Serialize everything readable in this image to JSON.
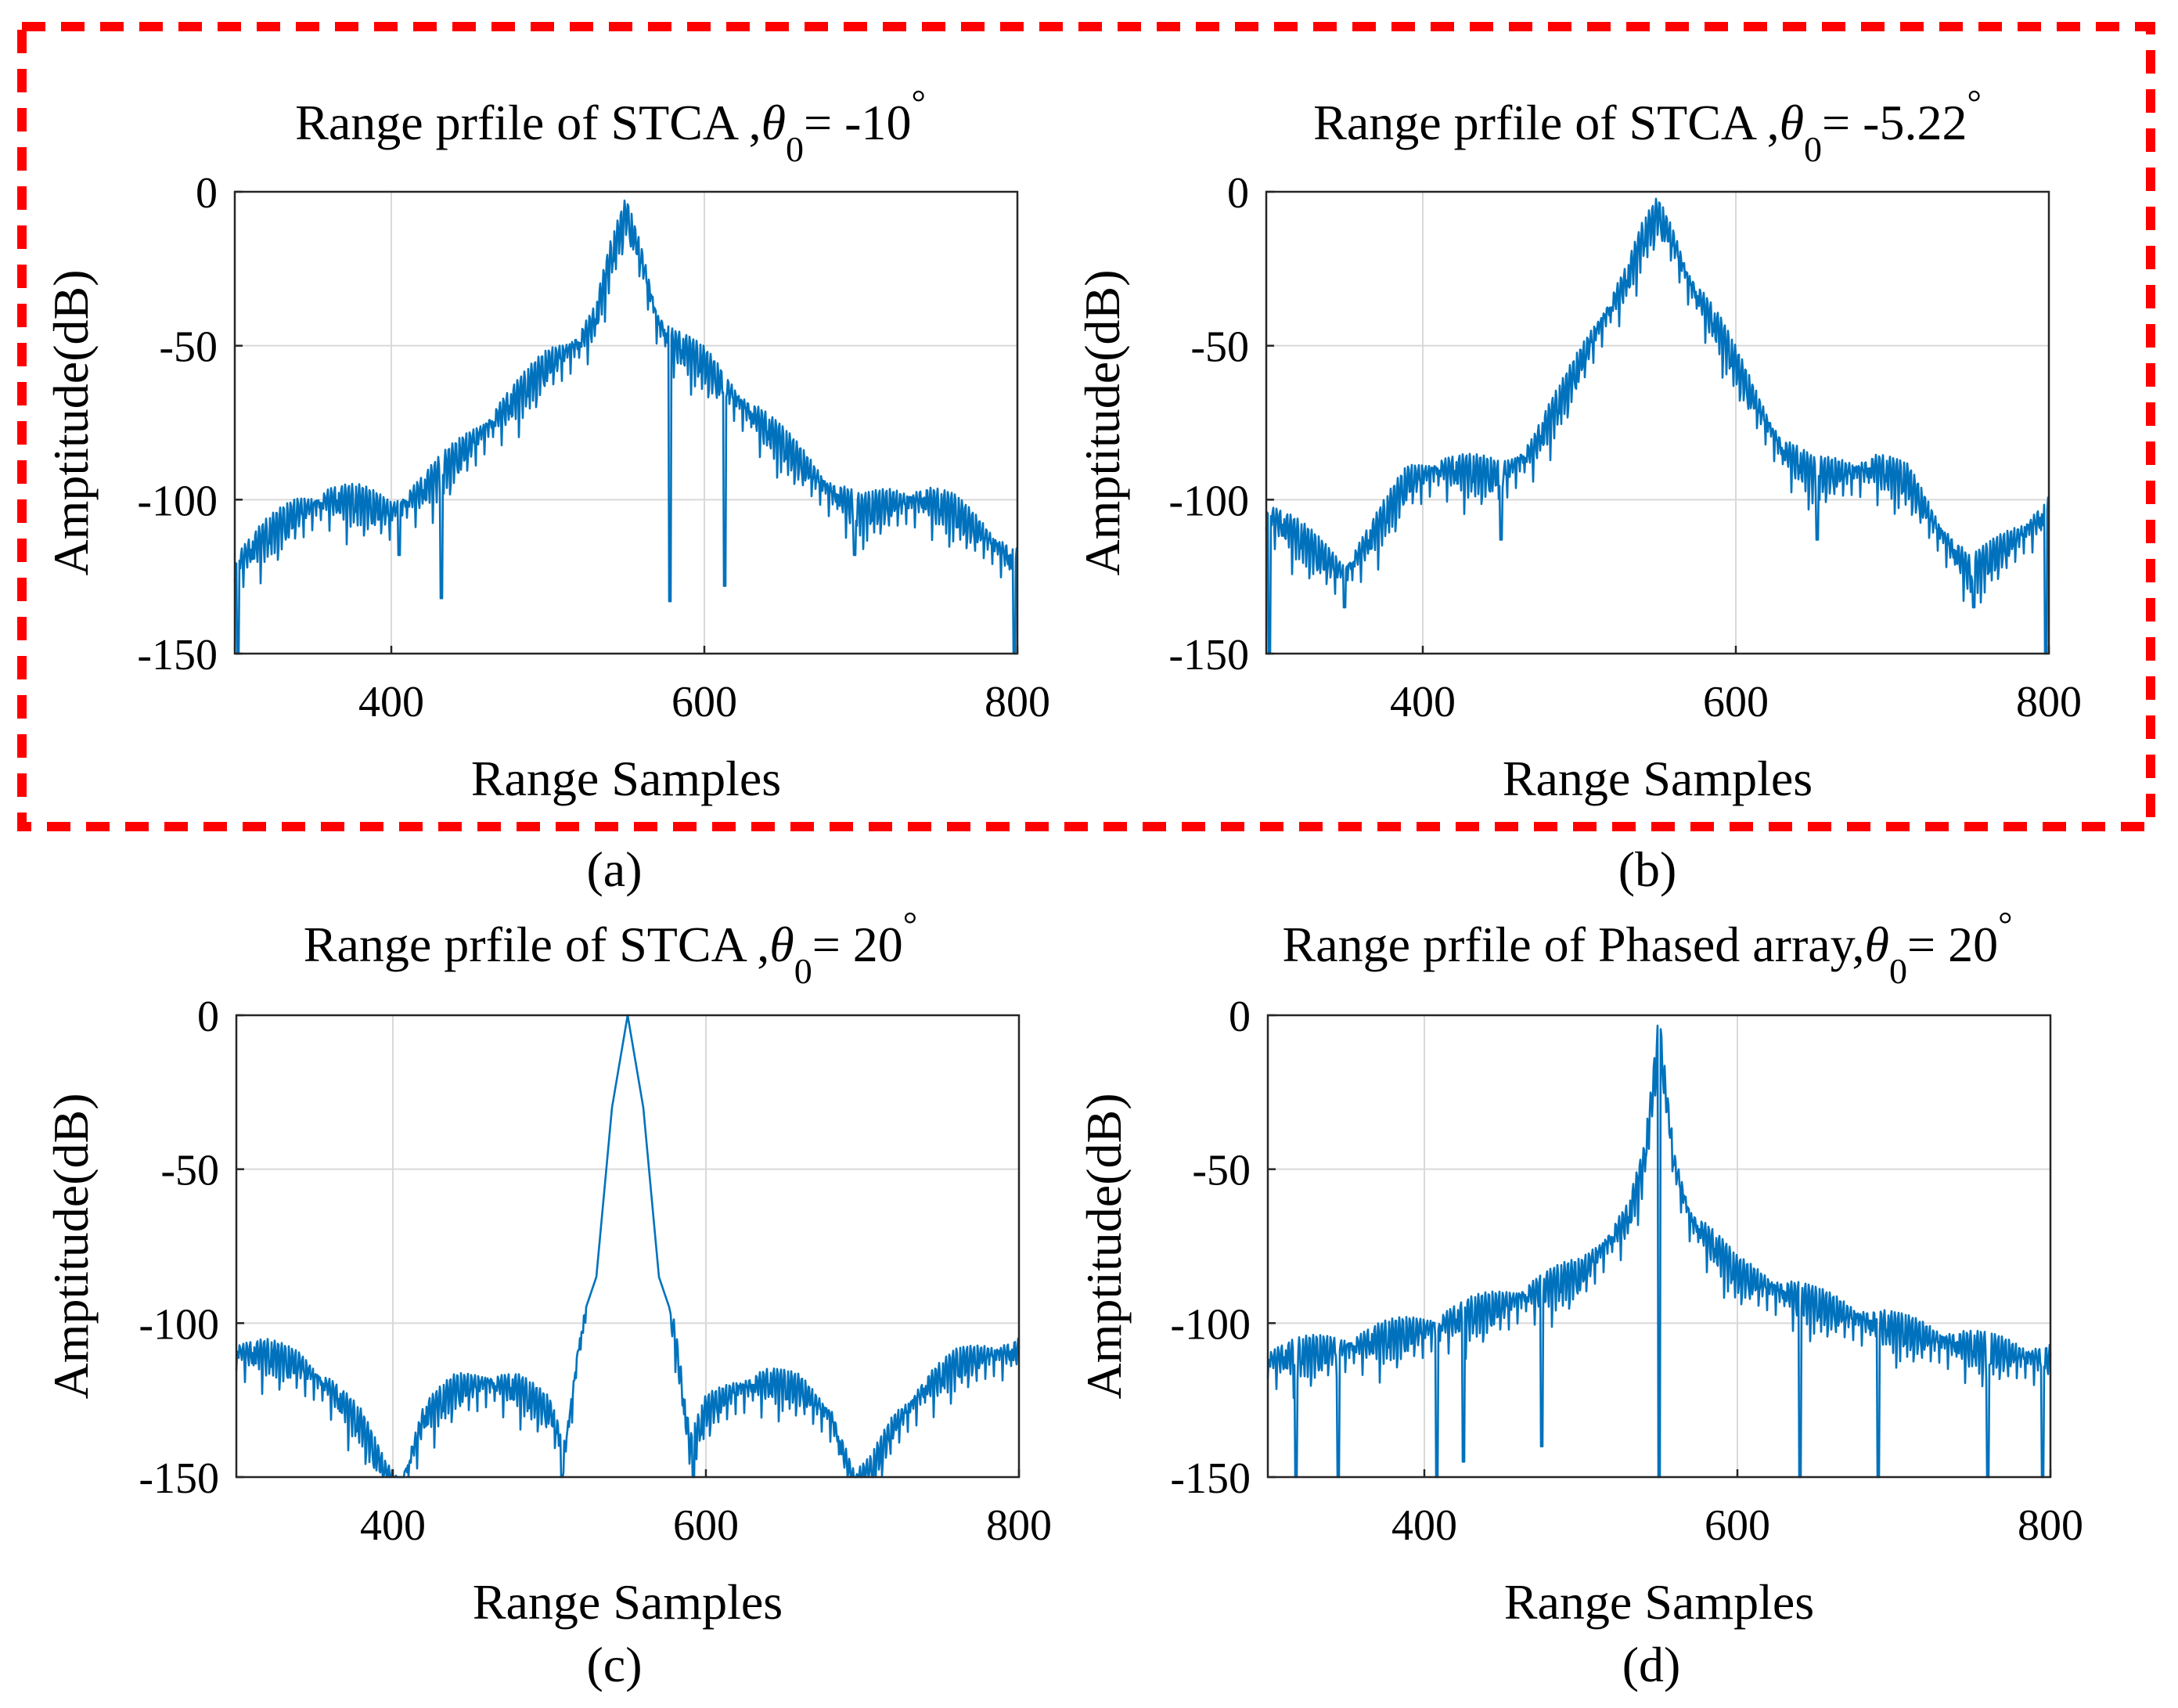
{
  "colors": {
    "series": "#0072BD",
    "grid": "#d9d9d9",
    "axis": "#262626",
    "highlight_box": "#ff0000"
  },
  "chart_data": [
    {
      "id": "a",
      "type": "line",
      "caption": "(a)",
      "title": "Range prfile of STCA ,",
      "theta_symbol": "θ",
      "theta_sub": "0",
      "title_suffix": "= -10",
      "degree": "°",
      "xlabel": "Range Samples",
      "ylabel": "Amptitude(dB)",
      "xlim": [
        300,
        800
      ],
      "ylim": [
        -150,
        0
      ],
      "xticks": [
        400,
        600,
        800
      ],
      "yticks": [
        0,
        -50,
        -100,
        -150
      ],
      "grid": true,
      "highlighted": true,
      "series": [
        {
          "name": "STCA",
          "x": [
            300,
            320,
            340,
            360,
            380,
            400,
            420,
            440,
            460,
            480,
            500,
            520,
            530,
            540,
            550,
            560,
            570,
            580,
            600,
            620,
            640,
            660,
            680,
            700,
            720,
            740,
            760,
            780,
            800
          ],
          "y": [
            -117,
            -108,
            -100,
            -96,
            -97,
            -100,
            -93,
            -83,
            -73,
            -63,
            -52,
            -45,
            -38,
            -18,
            -3,
            -18,
            -38,
            -45,
            -52,
            -63,
            -73,
            -83,
            -93,
            -100,
            -97,
            -96,
            -100,
            -108,
            -117
          ],
          "nulls": [
            [
              302,
              -150
            ],
            [
              405,
              -118
            ],
            [
              432,
              -132
            ],
            [
              578,
              -133
            ],
            [
              613,
              -128
            ],
            [
              696,
              -118
            ],
            [
              798,
              -150
            ]
          ]
        }
      ]
    },
    {
      "id": "b",
      "type": "line",
      "caption": "(b)",
      "title": "Range prfile of STCA ,",
      "theta_symbol": "θ",
      "theta_sub": "0",
      "title_suffix": "= -5.22",
      "degree": "°",
      "xlabel": "Range Samples",
      "ylabel": "Amptitude(dB)",
      "xlim": [
        300,
        800
      ],
      "ylim": [
        -150,
        0
      ],
      "xticks": [
        400,
        600,
        800
      ],
      "yticks": [
        0,
        -50,
        -100,
        -150
      ],
      "grid": true,
      "highlighted": true,
      "series": [
        {
          "name": "STCA",
          "x": [
            300,
            320,
            350,
            370,
            390,
            410,
            430,
            450,
            470,
            490,
            510,
            530,
            540,
            550,
            560,
            570,
            590,
            610,
            630,
            650,
            670,
            690,
            710,
            730,
            750,
            780,
            800
          ],
          "y": [
            -100,
            -108,
            -120,
            -106,
            -90,
            -86,
            -87,
            -88,
            -80,
            -62,
            -42,
            -25,
            -12,
            -3,
            -12,
            -25,
            -42,
            -62,
            -80,
            -88,
            -87,
            -86,
            -90,
            -106,
            -120,
            -108,
            -100
          ],
          "nulls": [
            [
              302,
              -150
            ],
            [
              350,
              -135
            ],
            [
              450,
              -113
            ],
            [
              652,
              -113
            ],
            [
              752,
              -135
            ],
            [
              798,
              -150
            ]
          ]
        }
      ]
    },
    {
      "id": "c",
      "type": "line",
      "caption": "(c)",
      "title": "Range prfile of STCA ,",
      "theta_symbol": "θ",
      "theta_sub": "0",
      "title_suffix": "= 20",
      "degree": "°",
      "xlabel": "Range Samples",
      "ylabel": "Amptitude(dB)",
      "xlim": [
        300,
        800
      ],
      "ylim": [
        -150,
        0
      ],
      "xticks": [
        400,
        600,
        800
      ],
      "yticks": [
        0,
        -50,
        -100,
        -150
      ],
      "grid": true,
      "highlighted": false,
      "series": [
        {
          "name": "STCA",
          "x": [
            300,
            320,
            340,
            360,
            380,
            395,
            405,
            420,
            440,
            460,
            480,
            500,
            510,
            520,
            530,
            540,
            550,
            560,
            570,
            580,
            590,
            600,
            620,
            640,
            660,
            680,
            695,
            705,
            720,
            740,
            760,
            780,
            800
          ],
          "y": [
            -106,
            -107,
            -110,
            -118,
            -130,
            -145,
            -150,
            -127,
            -118,
            -116,
            -118,
            -125,
            -138,
            -100,
            -85,
            -30,
            0,
            -30,
            -85,
            -100,
            -138,
            -125,
            -118,
            -116,
            -118,
            -127,
            -150,
            -145,
            -130,
            -118,
            -110,
            -107,
            -106
          ],
          "nulls": [
            [
              508,
              -150
            ],
            [
              592,
              -150
            ]
          ]
        }
      ]
    },
    {
      "id": "d",
      "type": "line",
      "caption": "(d)",
      "title": "Range prfile of Phased array,",
      "theta_symbol": "θ",
      "theta_sub": "0",
      "title_suffix": "= 20",
      "degree": "°",
      "xlabel": "Range Samples",
      "ylabel": "Amptitude(dB)",
      "xlim": [
        300,
        800
      ],
      "ylim": [
        -150,
        0
      ],
      "xticks": [
        400,
        600,
        800
      ],
      "yticks": [
        0,
        -50,
        -100,
        -150
      ],
      "grid": true,
      "highlighted": false,
      "series": [
        {
          "name": "Phased array",
          "x": [
            300,
            350,
            400,
            450,
            500,
            520,
            530,
            540,
            545,
            550,
            555,
            560,
            570,
            580,
            600,
            650,
            700,
            750,
            800
          ],
          "y": [
            -108,
            -104,
            -98,
            -90,
            -80,
            -68,
            -62,
            -45,
            -25,
            0,
            -25,
            -45,
            -62,
            -68,
            -80,
            -90,
            -98,
            -104,
            -108
          ],
          "nulls": [
            [
              318,
              -150
            ],
            [
              345,
              -150
            ],
            [
              408,
              -150
            ],
            [
              425,
              -145
            ],
            [
              475,
              -140
            ],
            [
              550,
              -150
            ],
            [
              640,
              -150
            ],
            [
              690,
              -150
            ],
            [
              760,
              -150
            ],
            [
              795,
              -150
            ]
          ]
        }
      ]
    }
  ]
}
